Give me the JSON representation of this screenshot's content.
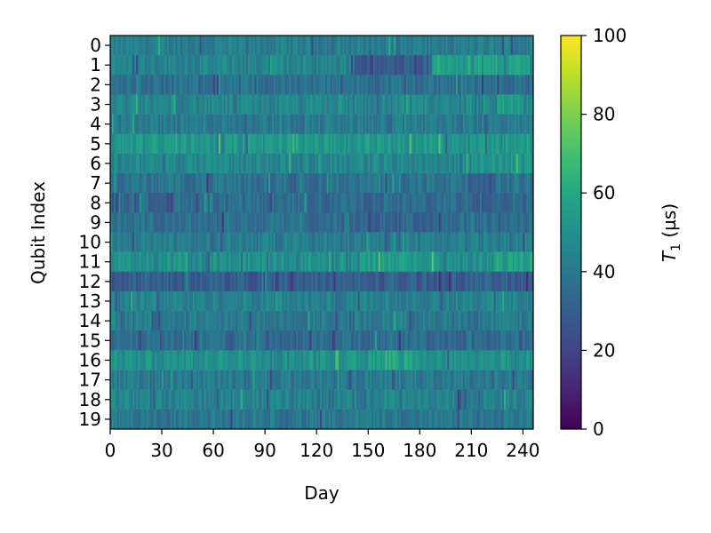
{
  "chart_data": {
    "type": "heatmap",
    "title": "",
    "xlabel": "Day",
    "ylabel": "Qubit Index",
    "xlim": [
      0,
      246
    ],
    "x_ticks": [
      0,
      30,
      60,
      90,
      120,
      150,
      180,
      210,
      240
    ],
    "x_tick_labels": [
      "0",
      "30",
      "60",
      "90",
      "120",
      "150",
      "180",
      "210",
      "240"
    ],
    "rows": [
      "0",
      "1",
      "2",
      "3",
      "4",
      "5",
      "6",
      "7",
      "8",
      "9",
      "10",
      "11",
      "12",
      "13",
      "14",
      "15",
      "16",
      "17",
      "18",
      "19"
    ],
    "colormap": "viridis",
    "colorbar": {
      "label_main": "T",
      "label_sub": "1",
      "label_unit": " (µs)",
      "range": [
        0,
        100
      ],
      "ticks": [
        0,
        20,
        40,
        60,
        80,
        100
      ],
      "tick_labels": [
        "0",
        "20",
        "40",
        "60",
        "80",
        "100"
      ]
    },
    "row_mean_t1_us": [
      42,
      45,
      37,
      45,
      41,
      53,
      46,
      38,
      35,
      37,
      42,
      50,
      30,
      44,
      41,
      35,
      50,
      41,
      44,
      40
    ],
    "segments": [
      {
        "row": 1,
        "day_start": 140,
        "day_end": 165,
        "t1_us": 27
      },
      {
        "row": 1,
        "day_start": 165,
        "day_end": 187,
        "t1_us": 30
      },
      {
        "row": 1,
        "day_start": 187,
        "day_end": 246,
        "t1_us": 57
      },
      {
        "row": 3,
        "day_start": 225,
        "day_end": 240,
        "t1_us": 55
      },
      {
        "row": 6,
        "day_start": 210,
        "day_end": 246,
        "t1_us": 52
      },
      {
        "row": 7,
        "day_start": 205,
        "day_end": 225,
        "t1_us": 30
      },
      {
        "row": 9,
        "day_start": 140,
        "day_end": 190,
        "t1_us": 32
      },
      {
        "row": 11,
        "day_start": 140,
        "day_end": 190,
        "t1_us": 55
      },
      {
        "row": 11,
        "day_start": 225,
        "day_end": 246,
        "t1_us": 56
      },
      {
        "row": 16,
        "day_start": 150,
        "day_end": 180,
        "t1_us": 56
      },
      {
        "row": 18,
        "day_start": 200,
        "day_end": 210,
        "t1_us": 33
      }
    ],
    "grid": false,
    "legend": "colorbar-right"
  },
  "colors": {
    "axis": "#000000",
    "background": "#ffffff"
  }
}
